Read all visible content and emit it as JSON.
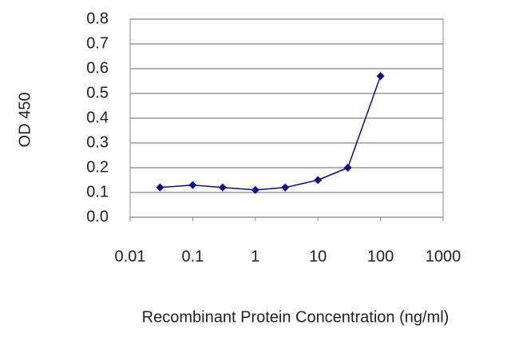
{
  "chart_data": {
    "type": "line",
    "x_label": "Recombinant Protein Concentration (ng/ml)",
    "y_label": "OD 450",
    "x": [
      0.03,
      0.1,
      0.3,
      1,
      3,
      10,
      30,
      100
    ],
    "series": [
      {
        "color": "#0a0a8c",
        "values": [
          0.12,
          0.13,
          0.12,
          0.11,
          0.12,
          0.15,
          0.2,
          0.57
        ]
      }
    ],
    "xscale": "log",
    "xlim": [
      0.01,
      1000
    ],
    "xticks": [
      0.01,
      0.1,
      1,
      10,
      100,
      1000
    ],
    "ylim": [
      0,
      0.8
    ],
    "yticks": [
      {
        "value": 0,
        "label": "0.0"
      },
      0.1,
      0.2,
      0.3,
      0.4,
      0.5,
      0.6,
      0.7,
      0.8
    ],
    "grid": true
  }
}
